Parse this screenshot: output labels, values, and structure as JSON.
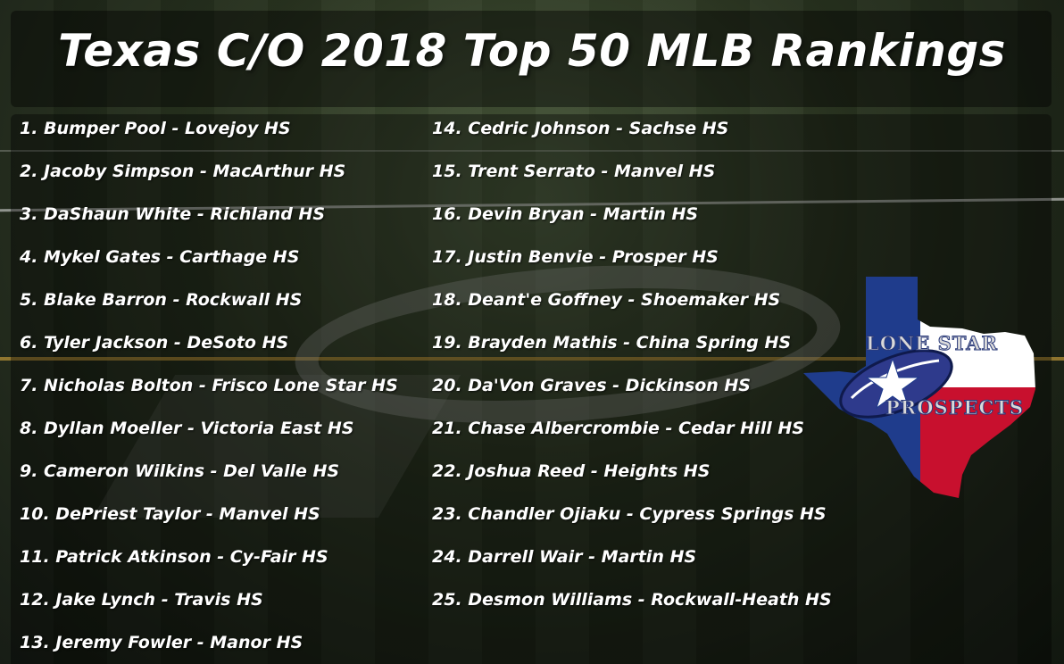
{
  "title": "Texas C/O 2018 Top 50 MLB Rankings",
  "rankings": [
    "1. Bumper Pool - Lovejoy HS",
    "2. Jacoby Simpson - MacArthur HS",
    "3. DaShaun White - Richland HS",
    "4. Mykel Gates - Carthage HS",
    "5. Blake Barron - Rockwall HS",
    "6. Tyler Jackson - DeSoto HS",
    "7. Nicholas Bolton - Frisco Lone Star HS",
    "8. Dyllan Moeller - Victoria East HS",
    "9. Cameron Wilkins - Del Valle HS",
    "10. DePriest Taylor - Manvel HS",
    "11. Patrick Atkinson - Cy-Fair HS",
    "12. Jake Lynch - Travis HS",
    "13. Jeremy Fowler - Manor HS",
    "14. Cedric Johnson - Sachse HS",
    "15. Trent Serrato - Manvel HS",
    "16. Devin Bryan - Martin HS",
    "17. Justin Benvie - Prosper HS",
    "18. Deant'e Goffney - Shoemaker HS",
    "19. Brayden Mathis - China Spring HS",
    "20. Da'Von Graves - Dickinson HS",
    "21. Chase Albercrombie - Cedar Hill HS",
    "22. Joshua Reed - Heights HS",
    "23. Chandler Ojiaku - Cypress Springs HS",
    "24. Darrell Wair - Martin HS",
    "25. Desmon Williams - Rockwall-Heath HS"
  ],
  "logo": {
    "line1": "LONE STAR",
    "line2": "PROSPECTS",
    "colors": {
      "blue": "#1f3c8c",
      "red": "#c8102e",
      "white": "#ffffff"
    }
  }
}
